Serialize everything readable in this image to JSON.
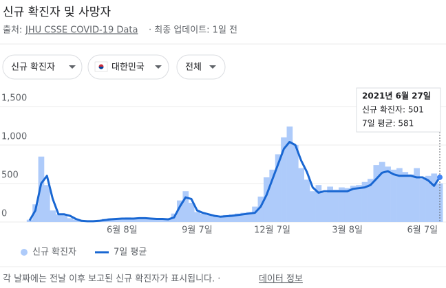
{
  "header": {
    "title": "신규 확진자 및 사망자",
    "source_prefix": "출처:",
    "source_link": "JHU CSSE COVID-19 Data",
    "updated": "· 최종 업데이트: 1일 전"
  },
  "filters": [
    "신규 확진자",
    "대한민국",
    "전체"
  ],
  "chart_data": {
    "type": "bar",
    "categories": [
      null,
      null,
      null,
      null,
      null,
      null,
      null,
      null,
      null,
      null,
      null,
      null,
      null,
      null,
      null,
      null,
      "6월 8일",
      null,
      null,
      null,
      null,
      null,
      null,
      null,
      null,
      null,
      null,
      null,
      null,
      "9월 7일",
      null,
      null,
      null,
      null,
      null,
      null,
      null,
      null,
      null,
      null,
      null,
      null,
      "12월 7일",
      null,
      null,
      null,
      null,
      null,
      null,
      null,
      null,
      null,
      null,
      null,
      null,
      "3월 8일",
      null,
      null,
      null,
      null,
      null,
      null,
      null,
      null,
      null,
      null,
      null,
      null,
      "6월 7일",
      null,
      null,
      null
    ],
    "series": [
      {
        "name": "신규 확진자",
        "type": "bar",
        "color": "#aecbfa",
        "values": [
          30,
          230,
          850,
          480,
          150,
          100,
          90,
          50,
          30,
          15,
          10,
          15,
          20,
          40,
          50,
          50,
          40,
          60,
          45,
          60,
          55,
          40,
          45,
          35,
          40,
          110,
          280,
          400,
          250,
          130,
          110,
          90,
          70,
          60,
          90,
          100,
          110,
          120,
          130,
          200,
          330,
          580,
          680,
          880,
          1100,
          1240,
          1000,
          700,
          550,
          400,
          480,
          380,
          460,
          420,
          450,
          440,
          470,
          480,
          520,
          560,
          740,
          780,
          720,
          680,
          700,
          650,
          620,
          700,
          560,
          600,
          630,
          501
        ]
      },
      {
        "name": "7일 평균",
        "type": "line",
        "color": "#1967d2",
        "values": [
          20,
          150,
          500,
          600,
          300,
          100,
          100,
          80,
          40,
          15,
          10,
          10,
          15,
          25,
          35,
          40,
          45,
          45,
          45,
          50,
          50,
          45,
          40,
          40,
          35,
          60,
          200,
          320,
          300,
          150,
          120,
          100,
          80,
          70,
          75,
          80,
          90,
          100,
          110,
          120,
          200,
          350,
          550,
          750,
          950,
          1040,
          1000,
          800,
          650,
          450,
          380,
          400,
          400,
          400,
          400,
          400,
          430,
          440,
          450,
          480,
          560,
          640,
          660,
          620,
          600,
          600,
          600,
          580,
          580,
          540,
          470,
          581
        ]
      }
    ],
    "ylim": [
      0,
      1500
    ],
    "yticks": [
      0,
      500,
      {
        "value": 1000,
        "label": "1,000"
      },
      {
        "value": 1500,
        "label": "1,500"
      }
    ],
    "grid": true,
    "tooltip": {
      "date": "2021년 6월 27일",
      "lines": [
        "신규 확진자: 501",
        "7일 평균: 581"
      ]
    }
  },
  "footer": {
    "note": "각 날짜에는 전날 이후 보고된 신규 확진자가 표시됩니다. ·",
    "link": "데이터 정보"
  }
}
